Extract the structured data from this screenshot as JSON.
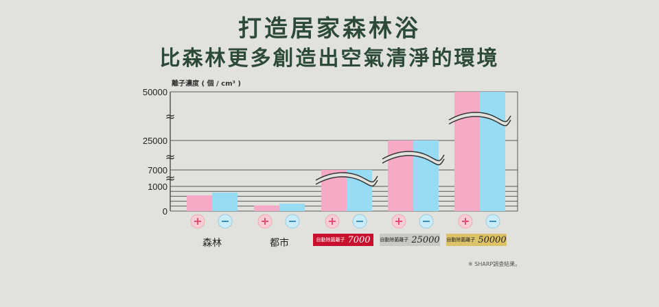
{
  "title": "打造居家森林浴",
  "subtitle": "比森林更多創造出空氣清淨的環境",
  "note": "※ SHARP調查結果。",
  "colors": {
    "pink": "#f6aac6",
    "blue": "#95dcf4",
    "title": "#2c4a37"
  },
  "chart_data": {
    "type": "bar",
    "ylabel": "離子濃度 ( 個 / cm³ )",
    "yticks": [
      "50000",
      "25000",
      "7000",
      "1000",
      "0"
    ],
    "ytick_values": [
      50000,
      25000,
      7000,
      1000,
      0
    ],
    "axis_breaks": true,
    "categories": [
      "森林",
      "都市",
      "自動除菌離子 7000",
      "自動除菌離子 25000",
      "自動除菌離子 50000"
    ],
    "series": [
      {
        "name": "positive-ion",
        "values": [
          640,
          230,
          7000,
          25000,
          50000
        ]
      },
      {
        "name": "negative-ion",
        "values": [
          750,
          300,
          7000,
          25000,
          50000
        ]
      }
    ],
    "badges": [
      {
        "label": "自動除菌離子",
        "value": "7000",
        "bg": "#c8102e",
        "fg": "#ffffff"
      },
      {
        "label": "自動除菌離子",
        "value": "25000",
        "bg": "#c9c9c6",
        "fg": "#222222"
      },
      {
        "label": "自動除菌離子",
        "value": "50000",
        "bg": "#dcc36a",
        "fg": "#222222"
      }
    ]
  }
}
